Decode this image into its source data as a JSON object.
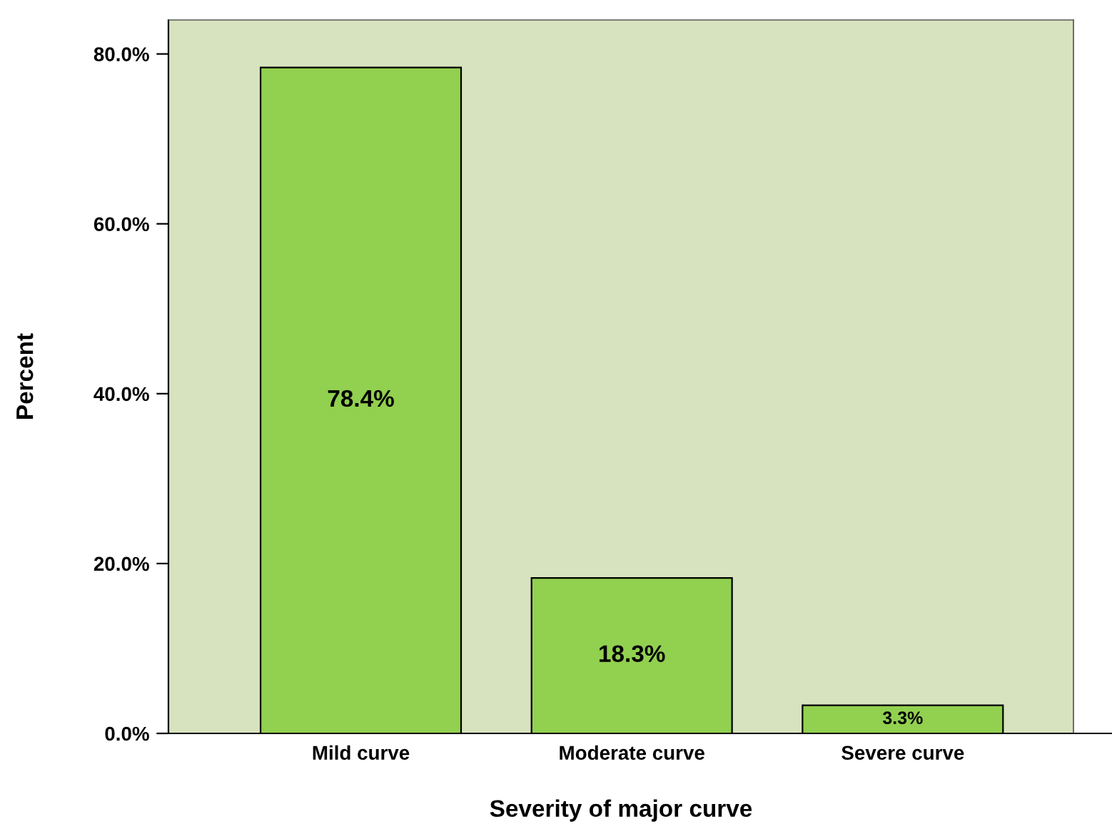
{
  "chart_data": {
    "type": "bar",
    "xlabel": "Severity of major curve",
    "ylabel": "Percent",
    "categories": [
      "Mild curve",
      "Moderate curve",
      "Severe curve"
    ],
    "values": [
      78.4,
      18.3,
      3.3
    ],
    "color": "#92d050",
    "value_labels": [
      "78.4%",
      "18.3%",
      "3.3%"
    ],
    "ylim": [
      0,
      84
    ],
    "yticks": [
      {
        "value": 0,
        "label": "0.0%"
      },
      {
        "value": 20,
        "label": "20.0%"
      },
      {
        "value": 40,
        "label": "40.0%"
      },
      {
        "value": 60,
        "label": "60.0%"
      },
      {
        "value": 80,
        "label": "80.0%"
      }
    ],
    "grid": false,
    "legend": false
  }
}
